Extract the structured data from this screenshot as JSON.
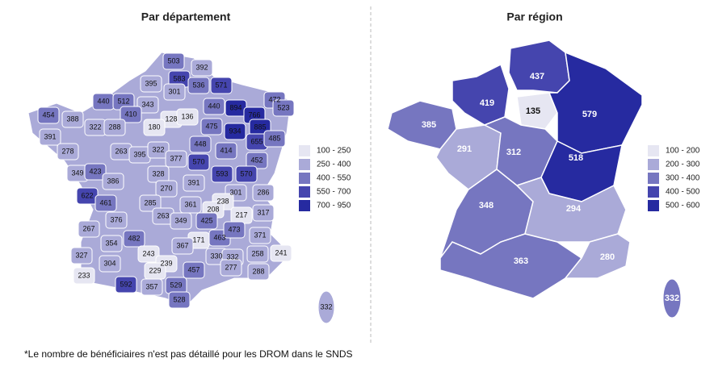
{
  "left": {
    "title": "Par département",
    "departments": [
      503,
      392,
      583,
      395,
      536,
      571,
      301,
      440,
      512,
      343,
      128,
      440,
      894,
      766,
      472,
      523,
      454,
      388,
      410,
      136,
      322,
      288,
      180,
      475,
      934,
      885,
      391,
      655,
      485,
      278,
      263,
      395,
      322,
      448,
      414,
      377,
      452,
      349,
      423,
      570,
      593,
      570,
      386,
      328,
      391,
      270,
      622,
      461,
      285,
      361,
      301,
      286,
      238,
      208,
      217,
      317,
      376,
      263,
      349,
      425,
      267,
      482,
      171,
      463,
      473,
      371,
      354,
      367,
      243,
      327,
      304,
      239,
      330,
      258,
      241,
      229,
      332,
      277,
      288,
      457,
      233,
      592,
      357,
      529,
      528,
      332
    ],
    "legend": [
      {
        "label": "100 - 250",
        "min": 100,
        "max": 250,
        "color": "#e6e6f2"
      },
      {
        "label": "250 - 400",
        "min": 250,
        "max": 400,
        "color": "#aaaad8"
      },
      {
        "label": "400 - 550",
        "min": 400,
        "max": 550,
        "color": "#7676c0"
      },
      {
        "label": "550 - 700",
        "min": 550,
        "max": 700,
        "color": "#4545ae"
      },
      {
        "label": "700 - 950",
        "min": 700,
        "max": 950,
        "color": "#262aa0"
      }
    ]
  },
  "right": {
    "title": "Par région",
    "regions": [
      385,
      419,
      437,
      135,
      579,
      291,
      312,
      518,
      348,
      294,
      363,
      280,
      332
    ],
    "legend": [
      {
        "label": "100 - 200",
        "min": 100,
        "max": 200,
        "color": "#e6e6f2"
      },
      {
        "label": "200 - 300",
        "min": 200,
        "max": 300,
        "color": "#aaaad8"
      },
      {
        "label": "300 - 400",
        "min": 300,
        "max": 400,
        "color": "#7676c0"
      },
      {
        "label": "400 - 500",
        "min": 400,
        "max": 500,
        "color": "#4545ae"
      },
      {
        "label": "500 - 600",
        "min": 500,
        "max": 600,
        "color": "#262aa0"
      }
    ]
  },
  "footnote": "*Le nombre de bénéficiaires n'est pas détaillé pour les DROM dans le SNDS"
}
